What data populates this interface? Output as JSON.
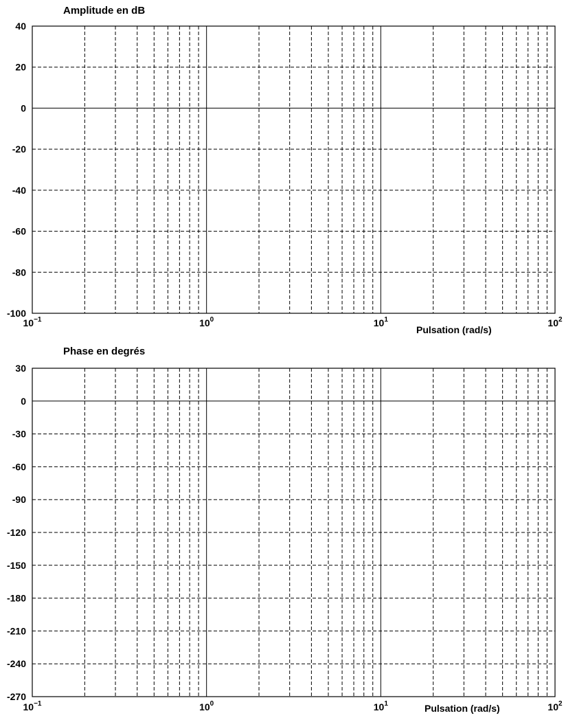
{
  "chart_data": [
    {
      "type": "line",
      "title": "Amplitude en dB",
      "xlabel": "Pulsation (rad/s)",
      "ylabel": "",
      "x_scale": "log",
      "xlim": [
        0.1,
        100
      ],
      "ylim": [
        -100,
        40
      ],
      "x_ticks": [
        {
          "base": "10",
          "exp": "−1"
        },
        {
          "base": "10",
          "exp": "0"
        },
        {
          "base": "10",
          "exp": "1"
        },
        {
          "base": "10",
          "exp": "2"
        }
      ],
      "y_ticks": [
        "40",
        "20",
        "0",
        "-20",
        "-40",
        "-60",
        "-80",
        "-100"
      ],
      "grid": true,
      "series": []
    },
    {
      "type": "line",
      "title": "Phase en degrés",
      "xlabel": "Pulsation (rad/s)",
      "ylabel": "",
      "x_scale": "log",
      "xlim": [
        0.1,
        100
      ],
      "ylim": [
        -270,
        30
      ],
      "x_ticks": [
        {
          "base": "10",
          "exp": "−1"
        },
        {
          "base": "10",
          "exp": "0"
        },
        {
          "base": "10",
          "exp": "1"
        },
        {
          "base": "10",
          "exp": "2"
        }
      ],
      "y_ticks": [
        "30",
        "0",
        "-30",
        "-60",
        "-90",
        "-120",
        "-150",
        "-180",
        "-210",
        "-240",
        "-270"
      ],
      "grid": true,
      "series": []
    }
  ]
}
